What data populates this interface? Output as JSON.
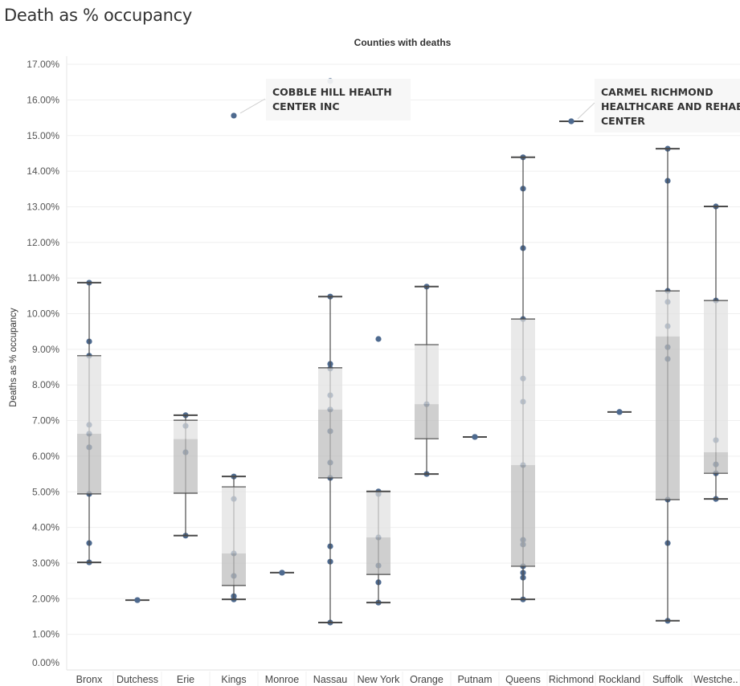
{
  "title": "Death as % occupancy",
  "chart_data": {
    "type": "boxplot",
    "column_header": "Counties with deaths",
    "ylabel": "Deaths as % occupancy",
    "ylim": [
      0,
      17
    ],
    "y_ticks": [
      "0.00%",
      "1.00%",
      "2.00%",
      "3.00%",
      "4.00%",
      "5.00%",
      "6.00%",
      "7.00%",
      "8.00%",
      "9.00%",
      "10.00%",
      "11.00%",
      "12.00%",
      "13.00%",
      "14.00%",
      "15.00%",
      "16.00%",
      "17.00%"
    ],
    "grid": true,
    "colors": {
      "point": "#4e6a8f",
      "box_upper": "#e0e0e0",
      "box_lower": "#bcbcbc",
      "whisker": "#4a4a4a"
    },
    "categories": [
      {
        "name": "Bronx",
        "points": [
          10.87,
          9.22,
          8.82,
          6.88,
          6.63,
          6.25,
          4.94,
          3.56,
          3.02
        ],
        "whisker_low": 3.02,
        "q1": 4.94,
        "median": 6.63,
        "q3": 8.82,
        "whisker_high": 10.87
      },
      {
        "name": "Dutchess",
        "points": [
          1.96
        ]
      },
      {
        "name": "Erie",
        "points": [
          7.15,
          6.85,
          6.11,
          3.77
        ],
        "whisker_low": 3.77,
        "q1": 4.96,
        "median": 6.48,
        "q3": 7.01,
        "whisker_high": 7.15
      },
      {
        "name": "Kings",
        "points": [
          15.56,
          5.43,
          4.8,
          3.27,
          2.64,
          2.07,
          1.98
        ],
        "whisker_low": 1.98,
        "q1": 2.37,
        "median": 3.27,
        "q3": 5.14,
        "whisker_high": 5.43
      },
      {
        "name": "Monroe",
        "points": [
          2.73
        ]
      },
      {
        "name": "Nassau",
        "points": [
          16.53,
          10.48,
          8.59,
          8.46,
          7.71,
          7.31,
          6.7,
          5.82,
          5.39,
          3.47,
          3.04,
          1.33
        ],
        "whisker_low": 1.33,
        "q1": 5.39,
        "median": 7.31,
        "q3": 8.48,
        "whisker_high": 10.48
      },
      {
        "name": "New York",
        "points": [
          9.29,
          5.01,
          4.94,
          3.72,
          2.93,
          2.46,
          1.89
        ],
        "whisker_low": 1.89,
        "q1": 2.68,
        "median": 3.72,
        "q3": 5.01,
        "whisker_high": 5.01
      },
      {
        "name": "Orange",
        "points": [
          10.76,
          7.46,
          5.5
        ],
        "whisker_low": 5.5,
        "q1": 6.49,
        "median": 7.46,
        "q3": 9.13,
        "whisker_high": 10.76
      },
      {
        "name": "Putnam",
        "points": [
          6.54
        ]
      },
      {
        "name": "Queens",
        "points": [
          14.39,
          13.51,
          11.84,
          9.85,
          8.18,
          7.53,
          5.75,
          3.65,
          3.52,
          2.91,
          2.73,
          2.59,
          1.98
        ],
        "whisker_low": 1.98,
        "q1": 2.91,
        "median": 5.75,
        "q3": 9.85,
        "whisker_high": 14.39
      },
      {
        "name": "Richmond",
        "points": [
          15.4
        ]
      },
      {
        "name": "Rockland",
        "points": [
          7.24
        ]
      },
      {
        "name": "Suffolk",
        "points": [
          14.63,
          13.73,
          10.64,
          10.33,
          9.65,
          9.06,
          8.73,
          4.78,
          3.56,
          1.38
        ],
        "whisker_low": 1.38,
        "q1": 4.78,
        "median": 9.36,
        "q3": 10.64,
        "whisker_high": 14.63
      },
      {
        "name": "Westche..",
        "points": [
          13.01,
          10.37,
          6.45,
          5.77,
          5.52,
          4.8
        ],
        "whisker_low": 4.8,
        "q1": 5.52,
        "median": 6.11,
        "q3": 10.37,
        "whisker_high": 13.01
      }
    ],
    "annotations": [
      {
        "category": "Kings",
        "value": 15.56,
        "lines": [
          "COBBLE HILL HEALTH",
          "CENTER INC"
        ]
      },
      {
        "category": "Richmond",
        "value": 15.4,
        "lines": [
          "CARMEL RICHMOND",
          "HEALTHCARE AND REHAB",
          "CENTER"
        ]
      }
    ]
  }
}
